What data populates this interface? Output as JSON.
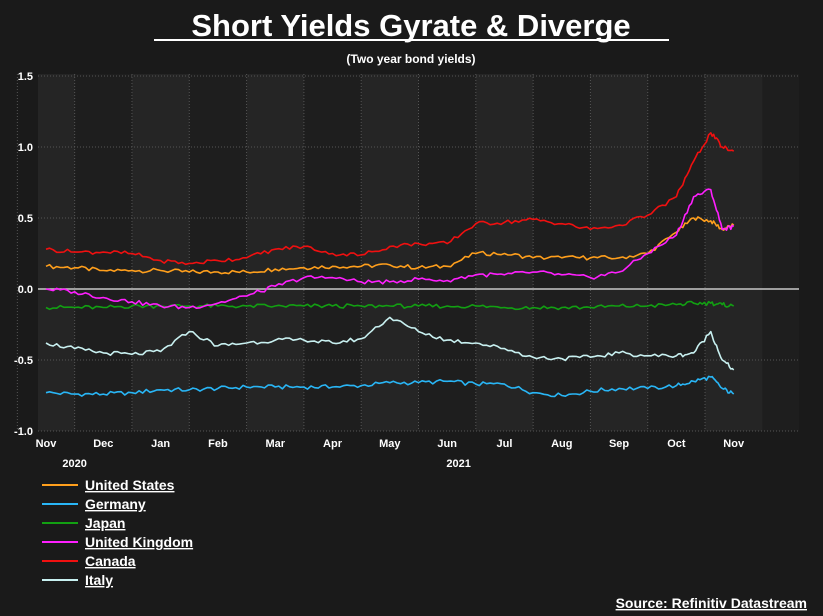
{
  "chart_data": {
    "type": "line",
    "title": "Short Yields Gyrate & Diverge",
    "subtitle": "(Two year bond yields)",
    "source": "Source: Refinitiv Datastream",
    "ylim": [
      -1.0,
      1.5
    ],
    "yticks": [
      "1.5",
      "1.0",
      "0.5",
      "0.0",
      "-0.5",
      "-1.0"
    ],
    "ytick_values": [
      1.5,
      1.0,
      0.5,
      0.0,
      -0.5,
      -1.0
    ],
    "xlim": [
      0,
      13
    ],
    "months": [
      "Nov",
      "Dec",
      "Jan",
      "Feb",
      "Mar",
      "Apr",
      "May",
      "Jun",
      "Jul",
      "Aug",
      "Sep",
      "Oct",
      "Nov"
    ],
    "years": [
      {
        "label": "2020",
        "at": 0.5
      },
      {
        "label": "2021",
        "at": 7.2
      }
    ],
    "grid": true,
    "x": [
      0,
      0.5,
      1,
      1.5,
      2,
      2.5,
      3,
      3.5,
      4,
      4.5,
      5,
      5.5,
      6,
      6.5,
      7,
      7.5,
      8,
      8.5,
      9,
      9.5,
      10,
      10.5,
      11,
      11.3,
      11.6,
      11.8,
      12.0
    ],
    "series": [
      {
        "name": "United States",
        "color": "#ff9f1c",
        "values": [
          0.16,
          0.15,
          0.13,
          0.13,
          0.13,
          0.12,
          0.12,
          0.12,
          0.14,
          0.15,
          0.16,
          0.16,
          0.17,
          0.15,
          0.16,
          0.25,
          0.25,
          0.22,
          0.22,
          0.22,
          0.22,
          0.25,
          0.4,
          0.5,
          0.48,
          0.42,
          0.45
        ]
      },
      {
        "name": "Germany",
        "color": "#29b6f6",
        "values": [
          -0.73,
          -0.74,
          -0.74,
          -0.73,
          -0.71,
          -0.71,
          -0.7,
          -0.69,
          -0.69,
          -0.69,
          -0.69,
          -0.68,
          -0.66,
          -0.66,
          -0.65,
          -0.67,
          -0.67,
          -0.73,
          -0.75,
          -0.72,
          -0.7,
          -0.7,
          -0.68,
          -0.65,
          -0.62,
          -0.7,
          -0.74
        ]
      },
      {
        "name": "Japan",
        "color": "#12a012",
        "values": [
          -0.13,
          -0.13,
          -0.13,
          -0.12,
          -0.12,
          -0.12,
          -0.12,
          -0.12,
          -0.12,
          -0.12,
          -0.12,
          -0.12,
          -0.12,
          -0.12,
          -0.12,
          -0.12,
          -0.13,
          -0.13,
          -0.13,
          -0.13,
          -0.12,
          -0.12,
          -0.11,
          -0.1,
          -0.1,
          -0.11,
          -0.12
        ]
      },
      {
        "name": "United Kingdom",
        "color": "#ff1fff",
        "values": [
          0.0,
          -0.02,
          -0.06,
          -0.09,
          -0.12,
          -0.13,
          -0.1,
          -0.05,
          0.02,
          0.08,
          0.08,
          0.05,
          0.05,
          0.07,
          0.06,
          0.1,
          0.1,
          0.12,
          0.1,
          0.08,
          0.12,
          0.25,
          0.38,
          0.65,
          0.7,
          0.42,
          0.44
        ]
      },
      {
        "name": "Canada",
        "color": "#f01010",
        "values": [
          0.28,
          0.26,
          0.26,
          0.25,
          0.2,
          0.18,
          0.2,
          0.22,
          0.28,
          0.3,
          0.25,
          0.24,
          0.3,
          0.32,
          0.32,
          0.46,
          0.47,
          0.49,
          0.46,
          0.42,
          0.45,
          0.52,
          0.65,
          0.9,
          1.1,
          1.0,
          0.97
        ]
      },
      {
        "name": "Italy",
        "color": "#c8f0f0",
        "values": [
          -0.38,
          -0.42,
          -0.45,
          -0.46,
          -0.44,
          -0.3,
          -0.4,
          -0.38,
          -0.36,
          -0.36,
          -0.38,
          -0.35,
          -0.2,
          -0.3,
          -0.36,
          -0.38,
          -0.42,
          -0.48,
          -0.49,
          -0.48,
          -0.45,
          -0.47,
          -0.47,
          -0.45,
          -0.3,
          -0.5,
          -0.57
        ]
      }
    ]
  }
}
